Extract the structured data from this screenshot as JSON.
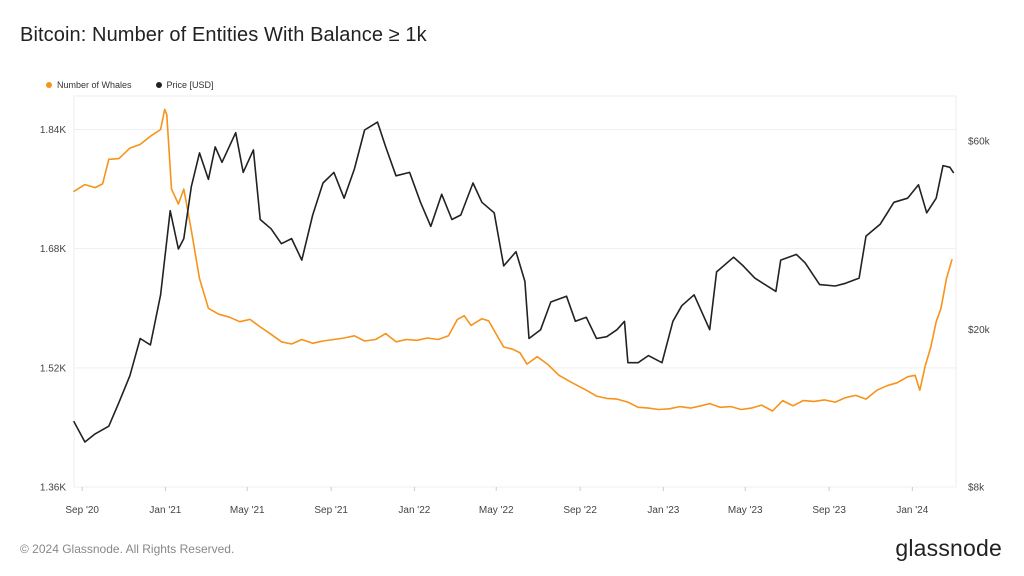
{
  "header": {
    "title": "Bitcoin: Number of Entities With Balance ≥ 1k"
  },
  "legend": [
    {
      "label": "Number of Whales",
      "color": "#f7931a"
    },
    {
      "label": "Price [USD]",
      "color": "#222222"
    }
  ],
  "footer": {
    "copyright": "© 2024 Glassnode. All Rights Reserved.",
    "brand": "glassnode"
  },
  "chart_data": {
    "type": "line",
    "title": "Bitcoin: Number of Entities With Balance ≥ 1k",
    "grid": true,
    "legend_position": "top-left",
    "x_ticks": [
      "Sep '20",
      "Jan '21",
      "May '21",
      "Sep '21",
      "Jan '22",
      "May '22",
      "Sep '22",
      "Jan '23",
      "May '23",
      "Sep '23",
      "Jan '24"
    ],
    "y_left": {
      "ticks": [
        "1.36K",
        "1.52K",
        "1.68K",
        "1.84K"
      ],
      "tick_values": [
        1360,
        1520,
        1680,
        1840
      ],
      "range": [
        1360,
        1885
      ]
    },
    "y_right": {
      "scale": "log",
      "ticks": [
        "$8k",
        "$20k",
        "$60k"
      ],
      "tick_values": [
        8000,
        20000,
        60000
      ],
      "range": [
        8000,
        78000
      ]
    },
    "series": [
      {
        "name": "Number of Whales",
        "axis": "left",
        "color": "#f7931a",
        "points": [
          [
            "2020-08-20",
            1757
          ],
          [
            "2020-09-05",
            1766
          ],
          [
            "2020-09-20",
            1762
          ],
          [
            "2020-10-01",
            1767
          ],
          [
            "2020-10-10",
            1800
          ],
          [
            "2020-10-25",
            1801
          ],
          [
            "2020-11-10",
            1815
          ],
          [
            "2020-11-25",
            1820
          ],
          [
            "2020-12-10",
            1831
          ],
          [
            "2020-12-25",
            1840
          ],
          [
            "2020-12-31",
            1867
          ],
          [
            "2021-01-03",
            1860
          ],
          [
            "2021-01-10",
            1760
          ],
          [
            "2021-01-20",
            1740
          ],
          [
            "2021-01-28",
            1760
          ],
          [
            "2021-02-08",
            1705
          ],
          [
            "2021-02-20",
            1640
          ],
          [
            "2021-03-05",
            1600
          ],
          [
            "2021-03-20",
            1592
          ],
          [
            "2021-04-05",
            1588
          ],
          [
            "2021-04-20",
            1582
          ],
          [
            "2021-05-05",
            1585
          ],
          [
            "2021-05-20",
            1575
          ],
          [
            "2021-06-05",
            1565
          ],
          [
            "2021-06-20",
            1555
          ],
          [
            "2021-07-05",
            1552
          ],
          [
            "2021-07-20",
            1558
          ],
          [
            "2021-08-05",
            1553
          ],
          [
            "2021-08-20",
            1556
          ],
          [
            "2021-09-05",
            1558
          ],
          [
            "2021-09-20",
            1560
          ],
          [
            "2021-10-05",
            1563
          ],
          [
            "2021-10-20",
            1556
          ],
          [
            "2021-11-05",
            1558
          ],
          [
            "2021-11-20",
            1566
          ],
          [
            "2021-12-05",
            1555
          ],
          [
            "2021-12-20",
            1558
          ],
          [
            "2022-01-05",
            1557
          ],
          [
            "2022-01-20",
            1560
          ],
          [
            "2022-02-05",
            1558
          ],
          [
            "2022-02-20",
            1563
          ],
          [
            "2022-03-05",
            1585
          ],
          [
            "2022-03-15",
            1590
          ],
          [
            "2022-03-25",
            1577
          ],
          [
            "2022-04-10",
            1586
          ],
          [
            "2022-04-20",
            1583
          ],
          [
            "2022-04-28",
            1570
          ],
          [
            "2022-05-12",
            1548
          ],
          [
            "2022-05-25",
            1545
          ],
          [
            "2022-06-05",
            1540
          ],
          [
            "2022-06-15",
            1525
          ],
          [
            "2022-06-30",
            1535
          ],
          [
            "2022-07-15",
            1525
          ],
          [
            "2022-08-01",
            1510
          ],
          [
            "2022-08-20",
            1500
          ],
          [
            "2022-09-10",
            1490
          ],
          [
            "2022-09-25",
            1482
          ],
          [
            "2022-10-10",
            1479
          ],
          [
            "2022-10-25",
            1478
          ],
          [
            "2022-11-10",
            1474
          ],
          [
            "2022-11-25",
            1467
          ],
          [
            "2022-12-10",
            1466
          ],
          [
            "2022-12-25",
            1464
          ],
          [
            "2023-01-10",
            1465
          ],
          [
            "2023-01-25",
            1468
          ],
          [
            "2023-02-10",
            1466
          ],
          [
            "2023-02-25",
            1469
          ],
          [
            "2023-03-10",
            1472
          ],
          [
            "2023-03-25",
            1467
          ],
          [
            "2023-04-10",
            1468
          ],
          [
            "2023-04-25",
            1464
          ],
          [
            "2023-05-10",
            1466
          ],
          [
            "2023-05-25",
            1470
          ],
          [
            "2023-06-10",
            1462
          ],
          [
            "2023-06-25",
            1476
          ],
          [
            "2023-07-10",
            1469
          ],
          [
            "2023-07-25",
            1476
          ],
          [
            "2023-08-10",
            1475
          ],
          [
            "2023-08-25",
            1477
          ],
          [
            "2023-09-10",
            1474
          ],
          [
            "2023-09-25",
            1480
          ],
          [
            "2023-10-10",
            1483
          ],
          [
            "2023-10-25",
            1478
          ],
          [
            "2023-11-10",
            1490
          ],
          [
            "2023-11-25",
            1496
          ],
          [
            "2023-12-10",
            1500
          ],
          [
            "2023-12-25",
            1508
          ],
          [
            "2024-01-05",
            1510
          ],
          [
            "2024-01-12",
            1490
          ],
          [
            "2024-01-20",
            1523
          ],
          [
            "2024-01-28",
            1548
          ],
          [
            "2024-02-05",
            1582
          ],
          [
            "2024-02-12",
            1600
          ],
          [
            "2024-02-20",
            1640
          ],
          [
            "2024-02-28",
            1665
          ]
        ]
      },
      {
        "name": "Price [USD]",
        "axis": "right",
        "color": "#222222",
        "points": [
          [
            "2020-08-20",
            11700
          ],
          [
            "2020-09-05",
            10400
          ],
          [
            "2020-09-20",
            10900
          ],
          [
            "2020-10-10",
            11400
          ],
          [
            "2020-10-25",
            13100
          ],
          [
            "2020-11-10",
            15300
          ],
          [
            "2020-11-25",
            19000
          ],
          [
            "2020-12-10",
            18300
          ],
          [
            "2020-12-25",
            24500
          ],
          [
            "2021-01-08",
            40000
          ],
          [
            "2021-01-20",
            32000
          ],
          [
            "2021-01-28",
            34000
          ],
          [
            "2021-02-08",
            46000
          ],
          [
            "2021-02-20",
            56000
          ],
          [
            "2021-03-05",
            48000
          ],
          [
            "2021-03-15",
            58000
          ],
          [
            "2021-03-25",
            53000
          ],
          [
            "2021-04-14",
            63000
          ],
          [
            "2021-04-25",
            50000
          ],
          [
            "2021-05-10",
            57000
          ],
          [
            "2021-05-20",
            38000
          ],
          [
            "2021-06-05",
            36000
          ],
          [
            "2021-06-20",
            33000
          ],
          [
            "2021-07-05",
            34000
          ],
          [
            "2021-07-20",
            30000
          ],
          [
            "2021-08-05",
            39000
          ],
          [
            "2021-08-20",
            47000
          ],
          [
            "2021-09-05",
            50000
          ],
          [
            "2021-09-20",
            43000
          ],
          [
            "2021-10-05",
            51000
          ],
          [
            "2021-10-20",
            64000
          ],
          [
            "2021-11-08",
            67000
          ],
          [
            "2021-11-20",
            58000
          ],
          [
            "2021-12-05",
            49000
          ],
          [
            "2021-12-25",
            50000
          ],
          [
            "2022-01-10",
            42000
          ],
          [
            "2022-01-25",
            36500
          ],
          [
            "2022-02-10",
            44000
          ],
          [
            "2022-02-25",
            38000
          ],
          [
            "2022-03-10",
            39000
          ],
          [
            "2022-03-28",
            47000
          ],
          [
            "2022-04-10",
            42000
          ],
          [
            "2022-04-28",
            39500
          ],
          [
            "2022-05-12",
            29000
          ],
          [
            "2022-05-30",
            31500
          ],
          [
            "2022-06-12",
            26500
          ],
          [
            "2022-06-18",
            19000
          ],
          [
            "2022-07-05",
            20000
          ],
          [
            "2022-07-20",
            23500
          ],
          [
            "2022-08-12",
            24300
          ],
          [
            "2022-08-25",
            21000
          ],
          [
            "2022-09-10",
            21500
          ],
          [
            "2022-09-25",
            19000
          ],
          [
            "2022-10-10",
            19200
          ],
          [
            "2022-10-25",
            20000
          ],
          [
            "2022-11-05",
            21000
          ],
          [
            "2022-11-10",
            16500
          ],
          [
            "2022-11-25",
            16500
          ],
          [
            "2022-12-10",
            17200
          ],
          [
            "2022-12-30",
            16500
          ],
          [
            "2023-01-15",
            21000
          ],
          [
            "2023-01-28",
            23000
          ],
          [
            "2023-02-15",
            24500
          ],
          [
            "2023-03-10",
            20000
          ],
          [
            "2023-03-20",
            28000
          ],
          [
            "2023-04-14",
            30500
          ],
          [
            "2023-04-28",
            29000
          ],
          [
            "2023-05-15",
            27000
          ],
          [
            "2023-06-15",
            25000
          ],
          [
            "2023-06-22",
            30000
          ],
          [
            "2023-07-15",
            31000
          ],
          [
            "2023-07-28",
            29500
          ],
          [
            "2023-08-18",
            26000
          ],
          [
            "2023-09-10",
            25800
          ],
          [
            "2023-09-25",
            26200
          ],
          [
            "2023-10-15",
            27000
          ],
          [
            "2023-10-25",
            34500
          ],
          [
            "2023-11-15",
            37000
          ],
          [
            "2023-12-05",
            42000
          ],
          [
            "2023-12-25",
            43000
          ],
          [
            "2024-01-10",
            46500
          ],
          [
            "2024-01-22",
            39500
          ],
          [
            "2024-02-05",
            43000
          ],
          [
            "2024-02-15",
            52000
          ],
          [
            "2024-02-25",
            51500
          ],
          [
            "2024-03-01",
            50000
          ]
        ]
      }
    ]
  }
}
